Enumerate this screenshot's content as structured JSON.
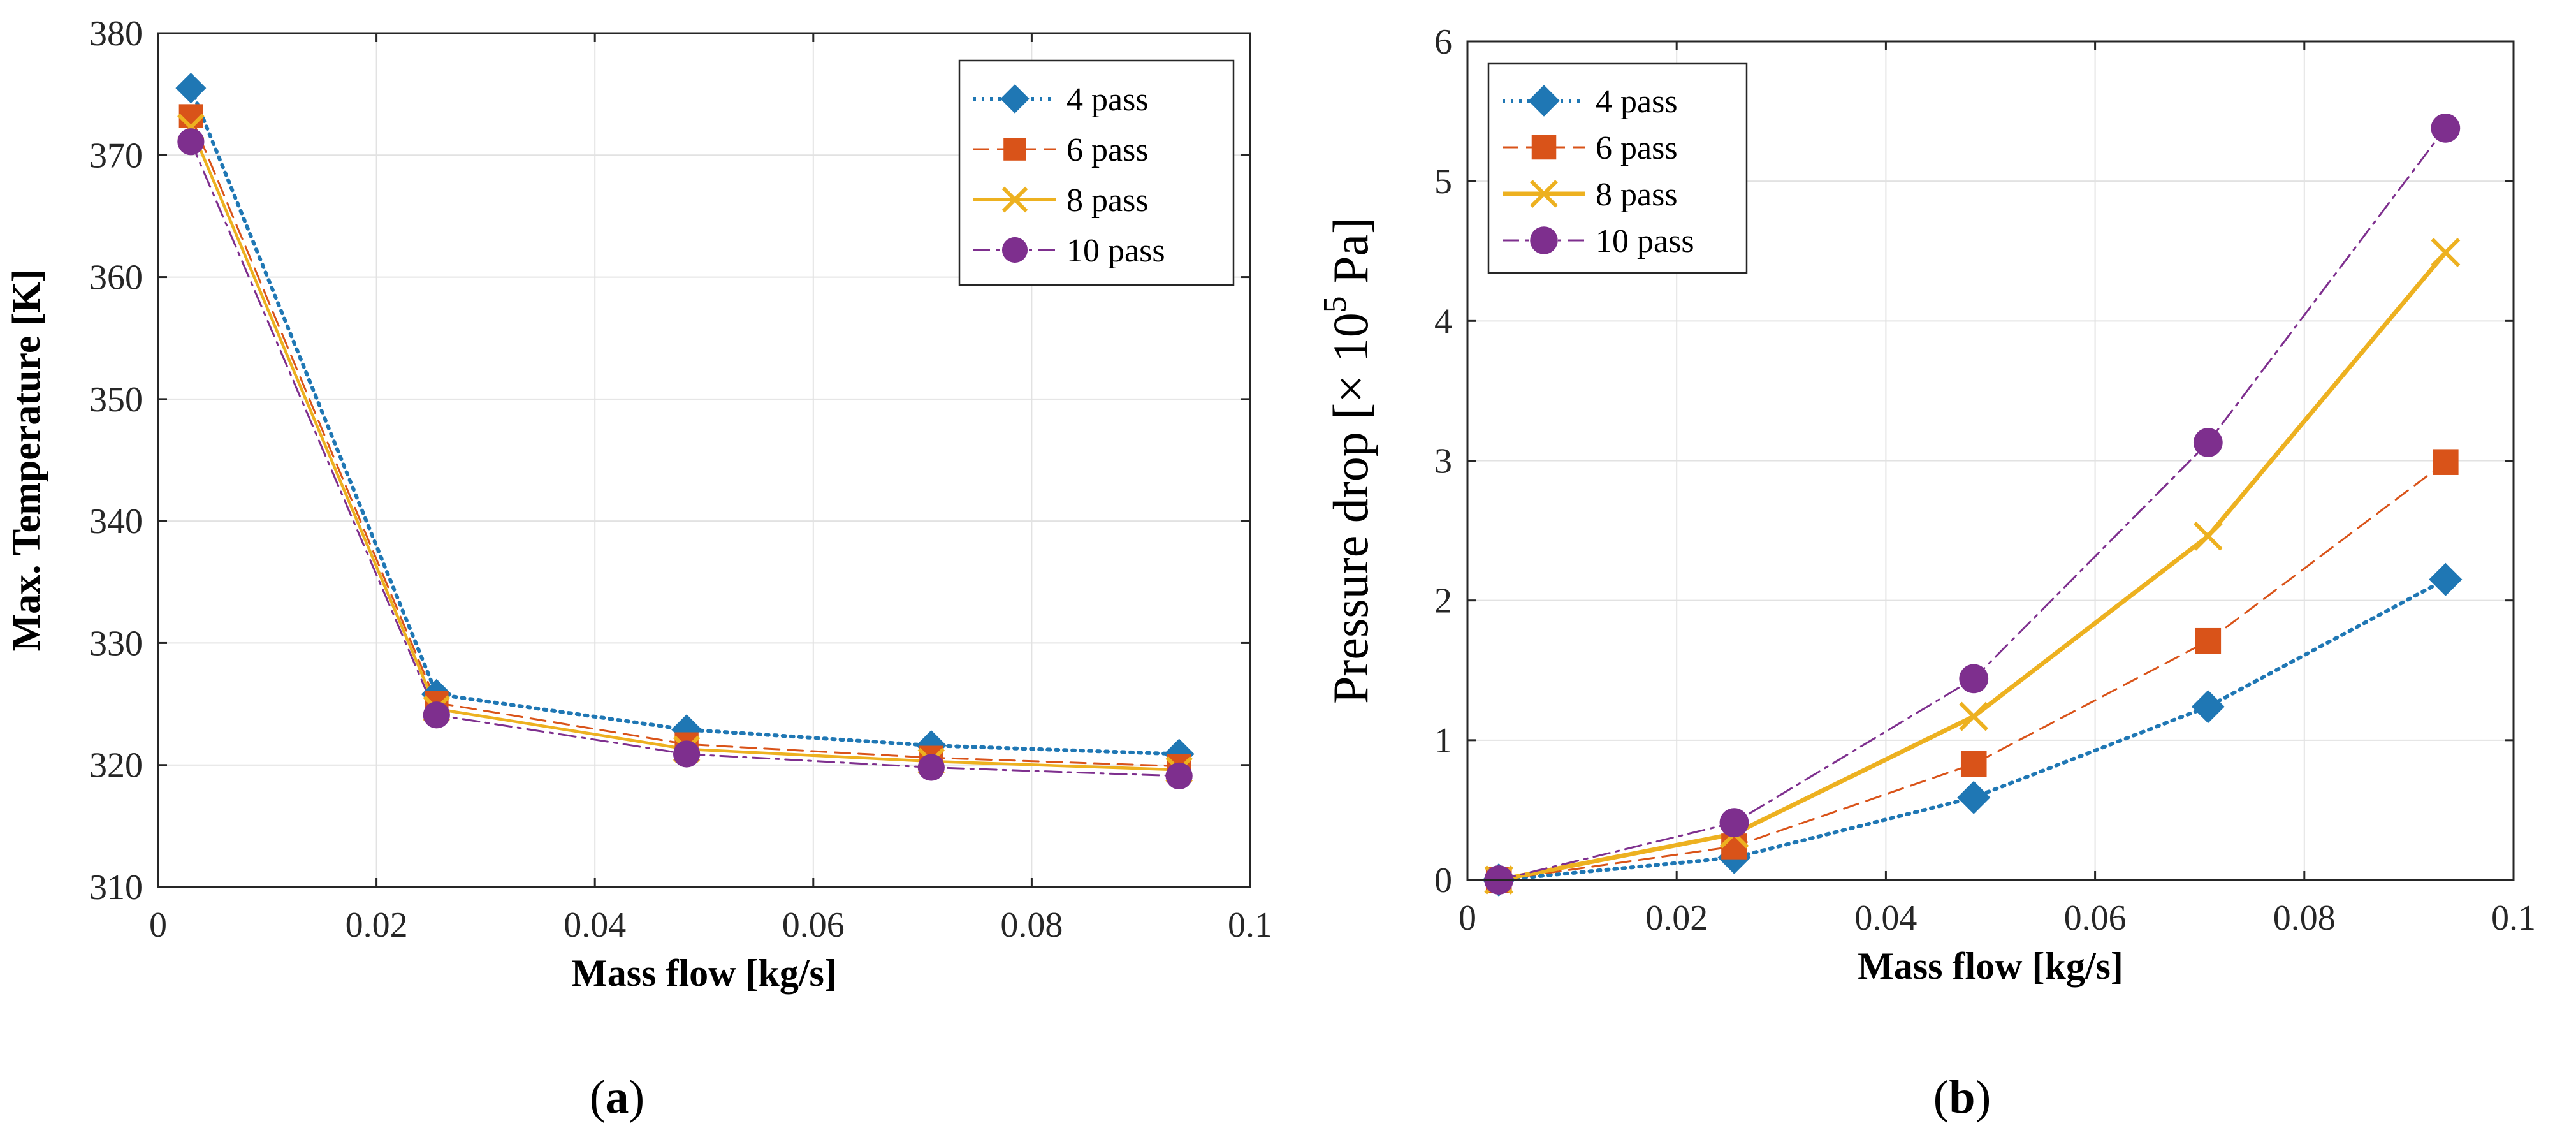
{
  "chart_data": [
    {
      "panel": "a",
      "type": "line",
      "xlabel": "Mass flow [kg/s]",
      "ylabel": "Max. Temperature [K]",
      "xlim": [
        0,
        0.1
      ],
      "ylim": [
        310,
        380
      ],
      "xticks": [
        0,
        0.02,
        0.04,
        0.06,
        0.08,
        0.1
      ],
      "xtick_labels": [
        "0",
        "0.02",
        "0.04",
        "0.06",
        "0.08",
        "0.1"
      ],
      "yticks": [
        310,
        320,
        330,
        340,
        350,
        360,
        370,
        380
      ],
      "ytick_labels": [
        "310",
        "320",
        "330",
        "340",
        "350",
        "360",
        "370",
        "380"
      ],
      "grid": true,
      "legend_position": "top-right",
      "x": [
        0.003,
        0.0255,
        0.0484,
        0.0708,
        0.0935
      ],
      "series": [
        {
          "name": "4 pass",
          "values": [
            375.5,
            325.8,
            322.9,
            321.6,
            320.9
          ]
        },
        {
          "name": "6 pass",
          "values": [
            373.2,
            325.1,
            321.7,
            320.6,
            319.9
          ]
        },
        {
          "name": "8 pass",
          "values": [
            372.3,
            324.6,
            321.3,
            320.3,
            319.6
          ]
        },
        {
          "name": "10 pass",
          "values": [
            371.1,
            324.1,
            320.9,
            319.8,
            319.1
          ]
        }
      ]
    },
    {
      "panel": "b",
      "type": "line",
      "xlabel": "Mass flow [kg/s]",
      "ylabel_main": "Pressure drop [× 10",
      "ylabel_exp": "5",
      "ylabel_unit": " Pa]",
      "xlim": [
        0,
        0.1
      ],
      "ylim": [
        0,
        6
      ],
      "xticks": [
        0,
        0.02,
        0.04,
        0.06,
        0.08,
        0.1
      ],
      "xtick_labels": [
        "0",
        "0.02",
        "0.04",
        "0.06",
        "0.08",
        "0.1"
      ],
      "yticks": [
        0,
        1,
        2,
        3,
        4,
        5,
        6
      ],
      "ytick_labels": [
        "0",
        "1",
        "2",
        "3",
        "4",
        "5",
        "6"
      ],
      "grid": true,
      "legend_position": "top-left",
      "x": [
        0.003,
        0.0255,
        0.0484,
        0.0708,
        0.0935
      ],
      "series": [
        {
          "name": "4 pass",
          "values": [
            0.0,
            0.16,
            0.59,
            1.24,
            2.15
          ]
        },
        {
          "name": "6 pass",
          "values": [
            0.0,
            0.24,
            0.83,
            1.71,
            2.99
          ]
        },
        {
          "name": "8 pass",
          "values": [
            0.0,
            0.33,
            1.17,
            2.46,
            4.49
          ]
        },
        {
          "name": "10 pass",
          "values": [
            0.0,
            0.41,
            1.44,
            3.13,
            5.38
          ]
        }
      ]
    }
  ],
  "series_styles": [
    {
      "color": "#1f77b4",
      "marker": "diamond",
      "dash": "dot"
    },
    {
      "color": "#d95319",
      "marker": "square",
      "dash": "dash"
    },
    {
      "color": "#edb120",
      "marker": "x",
      "dash": "solid"
    },
    {
      "color": "#7e2f8e",
      "marker": "circle",
      "dash": "dashdot"
    }
  ],
  "captions": {
    "a": {
      "open": "(",
      "letter": "a",
      "close": ")"
    },
    "b": {
      "open": "(",
      "letter": "b",
      "close": ")"
    }
  }
}
